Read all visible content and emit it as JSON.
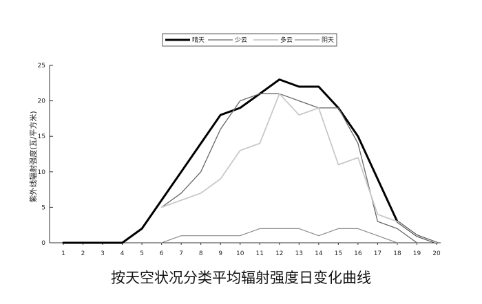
{
  "chart_data": {
    "type": "line",
    "caption": "按天空状况分类平均辐射强度日变化曲线",
    "ylabel": "紫外线辐射强度(瓦/平方米)",
    "xlabel": "",
    "x": [
      1,
      2,
      3,
      4,
      5,
      6,
      7,
      8,
      9,
      10,
      11,
      12,
      13,
      14,
      15,
      16,
      17,
      18,
      19,
      20
    ],
    "xlim": [
      1,
      20
    ],
    "ylim": [
      0,
      25
    ],
    "yticks": [
      0,
      5,
      10,
      15,
      20,
      25
    ],
    "grid": false,
    "legend_position": "top",
    "series": [
      {
        "name": "晴天",
        "color": "#000000",
        "x": [
          1,
          2,
          3,
          4,
          5,
          6,
          7,
          8,
          9,
          10,
          11,
          12,
          13,
          14,
          15,
          16,
          17,
          18,
          19,
          20
        ],
        "values": [
          0,
          0,
          0,
          0,
          2,
          6,
          10,
          14,
          18,
          19,
          21,
          23,
          22,
          22,
          19,
          15,
          9,
          3,
          1,
          0
        ]
      },
      {
        "name": "少云",
        "color": "#666666",
        "x": [
          6,
          7,
          8,
          9,
          10,
          11,
          12,
          13,
          14,
          15,
          16,
          17,
          18,
          19
        ],
        "values": [
          5,
          7,
          10,
          16,
          20,
          21,
          21,
          20,
          19,
          19,
          14,
          3,
          2,
          0
        ]
      },
      {
        "name": "多云",
        "color": "#c8c8c8",
        "x": [
          6,
          7,
          8,
          9,
          10,
          11,
          12,
          13,
          14,
          15,
          16,
          17,
          18,
          19,
          20
        ],
        "values": [
          5,
          6,
          7,
          9,
          13,
          14,
          21,
          18,
          19,
          11,
          12,
          4,
          3,
          1,
          0
        ]
      },
      {
        "name": "阴天",
        "color": "#8c8c8c",
        "x": [
          6,
          7,
          8,
          9,
          10,
          11,
          12,
          13,
          14,
          15,
          16,
          17,
          18
        ],
        "values": [
          0,
          1,
          1,
          1,
          1,
          2,
          2,
          2,
          1,
          2,
          2,
          1,
          0
        ]
      }
    ]
  }
}
